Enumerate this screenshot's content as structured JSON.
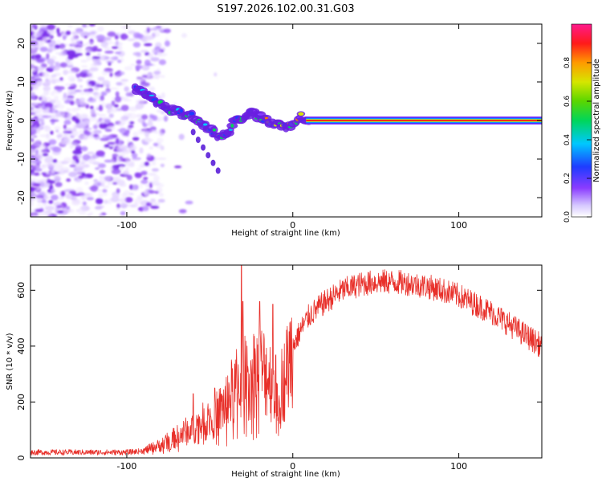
{
  "title": "S197.2026.102.00.31.G03",
  "chart_data": [
    {
      "type": "heatmap",
      "name": "spectrogram",
      "xlabel": "Height of straight line (km)",
      "ylabel": "Frequency (Hz)",
      "xlim": [
        -158,
        150
      ],
      "ylim": [
        -25,
        25
      ],
      "x_ticks": [
        -100,
        0,
        100
      ],
      "x_tick_labels": [
        "-100",
        "0",
        "100"
      ],
      "y_ticks": [
        20,
        10,
        0,
        -10,
        -20
      ],
      "y_tick_labels": [
        "20",
        "10",
        "0",
        "-10",
        "-20"
      ],
      "ridge": {
        "x": [
          -95,
          -88,
          -82,
          -75,
          -68,
          -60,
          -55,
          -50,
          -45,
          -40,
          -35,
          -30,
          -25,
          -20,
          -15,
          -10,
          -5,
          0,
          5,
          10,
          20,
          50,
          80,
          110,
          150
        ],
        "y": [
          8,
          7,
          5,
          3,
          2,
          1,
          -1,
          -2,
          -4,
          -4,
          0,
          1,
          2,
          1,
          0,
          -1,
          -2,
          -1,
          1,
          0,
          0,
          0,
          0,
          0,
          0
        ]
      },
      "branch": {
        "x": [
          -60,
          -57,
          -54,
          -51,
          -48,
          -45
        ],
        "y": [
          -3,
          -5,
          -7,
          -9,
          -11,
          -13
        ]
      },
      "colorbar": {
        "label": "Normalized spectral amplitude",
        "range": [
          0.0,
          1.0
        ],
        "ticks": [
          0.0,
          0.2,
          0.4,
          0.6,
          0.8
        ],
        "tick_labels": [
          "0.0",
          "0.2",
          "0.4",
          "0.6",
          "0.8"
        ]
      }
    },
    {
      "type": "line",
      "name": "snr",
      "xlabel": "Height of straight line (km)",
      "ylabel": "SNR (10 * v/v)",
      "xlim": [
        -158,
        150
      ],
      "ylim": [
        0,
        690
      ],
      "x_ticks": [
        -100,
        0,
        100
      ],
      "x_tick_labels": [
        "-100",
        "0",
        "100"
      ],
      "y_ticks": [
        0,
        200,
        400,
        600
      ],
      "y_tick_labels": [
        "0",
        "200",
        "400",
        "600"
      ],
      "color": "#e8302a",
      "envelope": {
        "x": [
          -158,
          -140,
          -120,
          -100,
          -90,
          -80,
          -70,
          -60,
          -50,
          -45,
          -40,
          -35,
          -30,
          -25,
          -20,
          -15,
          -10,
          -5,
          0,
          5,
          10,
          20,
          30,
          40,
          50,
          60,
          70,
          80,
          90,
          100,
          110,
          120,
          130,
          140,
          150
        ],
        "y": [
          20,
          20,
          20,
          20,
          25,
          45,
          75,
          110,
          140,
          160,
          200,
          250,
          280,
          300,
          320,
          300,
          240,
          280,
          400,
          460,
          510,
          560,
          600,
          620,
          630,
          630,
          625,
          615,
          600,
          580,
          550,
          520,
          480,
          440,
          400
        ]
      },
      "spikes": [
        {
          "x": -60,
          "y": 230
        },
        {
          "x": -47,
          "y": 250
        },
        {
          "x": -31,
          "y": 690
        },
        {
          "x": -30,
          "y": 560
        },
        {
          "x": -20,
          "y": 560
        },
        {
          "x": -12,
          "y": 550
        }
      ]
    }
  ]
}
